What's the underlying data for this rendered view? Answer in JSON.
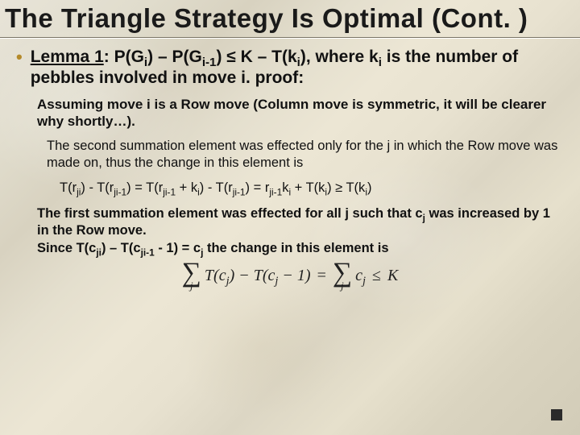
{
  "title": "The Triangle Strategy Is Optimal (Cont. )",
  "bullet_html": "<span class='u'>Lemma 1</span>: P(G<sub>i</sub>) – P(G<sub>i-1</sub>) ≤ K – T(k<sub>i</sub>), where k<sub>i</sub> is the number of pebbles involved in move i. proof:",
  "para1": "Assuming move i is a Row move (Column move is symmetric, it will be clearer why shortly…).",
  "para2": "The second summation element was effected only for the j in which the Row move was made on, thus the change in this element is",
  "eq_html": "T(r<sub>ji</sub>) - T(r<sub>ji-1</sub>)  =  T(r<sub>ji-1</sub> + k<sub>i</sub>) - T(r<sub>ji-1</sub>) = r<sub>ji-1</sub>k<sub>i</sub> + T(k<sub>i</sub>) ≥ T(k<sub>i</sub>)",
  "para3_html": "The first summation element was effected for all j such that c<sub>j</sub> was increased by 1 in the Row move.<br>Since T(c<sub>ji</sub>) – T(c<sub>ji-1</sub> - 1) = c<sub>j</sub> the change in this element is",
  "formula": {
    "lhs_term": "T(c<sub>j</sub>) − T(c<sub>j</sub> − 1)",
    "rhs_term": "c<sub>j</sub>",
    "index": "j",
    "rel1": "=",
    "rel2": "≤",
    "K": "K"
  },
  "colors": {
    "bullet_dot": "#b48a2a",
    "text": "#111111",
    "qed": "#2a2a2a"
  }
}
